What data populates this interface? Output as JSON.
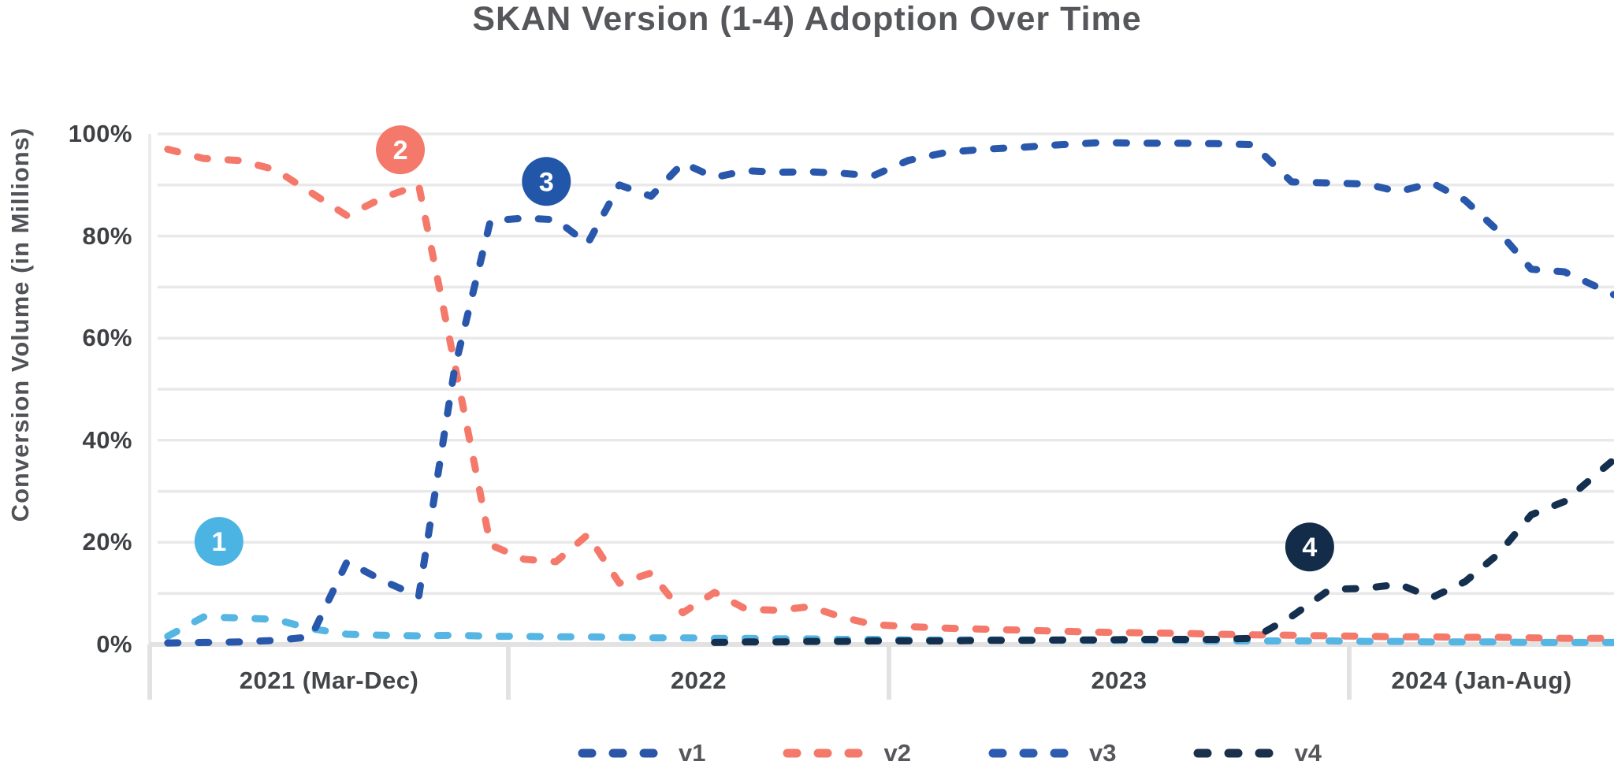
{
  "title": "SKAN Version (1-4) Adoption Over Time",
  "y_axis": {
    "title": "Conversion Volume (in Millions)",
    "ticks": [
      {
        "value": 0,
        "label": "0%"
      },
      {
        "value": 20,
        "label": "20%"
      },
      {
        "value": 40,
        "label": "40%"
      },
      {
        "value": 60,
        "label": "60%"
      },
      {
        "value": 80,
        "label": "80%"
      },
      {
        "value": 100,
        "label": "100%"
      }
    ]
  },
  "x_axis": {
    "sections": [
      {
        "label": "2021 (Mar-Dec)",
        "months": 10
      },
      {
        "label": "2022",
        "months": 12
      },
      {
        "label": "2023",
        "months": 12
      },
      {
        "label": "2024 (Jan-Aug)",
        "months": 8
      }
    ]
  },
  "legend": {
    "items": [
      {
        "label": "v1",
        "color": "#2B55A6"
      },
      {
        "label": "v2",
        "color": "#F5796B"
      },
      {
        "label": "v3",
        "color": "#2C5BB0"
      },
      {
        "label": "v4",
        "color": "#1B304A"
      }
    ]
  },
  "annotations": [
    {
      "label": "1",
      "color": "#4CB4E2",
      "month_index": 1.43,
      "value_pct": 20.2
    },
    {
      "label": "2",
      "color": "#F5796B",
      "month_index": 6.49,
      "value_pct": 96.9
    },
    {
      "label": "3",
      "color": "#2156A9",
      "month_index": 10.7,
      "value_pct": 90.7
    },
    {
      "label": "4",
      "color": "#132C49",
      "month_index": 32.47,
      "value_pct": 19.1
    }
  ],
  "chart_data": {
    "type": "line",
    "title": "SKAN Version (1-4) Adoption Over Time",
    "ylabel": "Conversion Volume (in Millions)",
    "ylim": [
      0,
      100
    ],
    "grid": "horizontal gridlines every 10%",
    "line_style": "dashed",
    "legend_position": "bottom",
    "x": [
      "Mar 2021",
      "Apr 2021",
      "May 2021",
      "Jun 2021",
      "Jul 2021",
      "Aug 2021",
      "Sep 2021",
      "Oct 2021",
      "Nov 2021",
      "Dec 2021",
      "Jan 2022",
      "Feb 2022",
      "Mar 2022",
      "Apr 2022",
      "May 2022",
      "Jun 2022",
      "Jul 2022",
      "Aug 2022",
      "Sep 2022",
      "Oct 2022",
      "Nov 2022",
      "Dec 2022",
      "Jan 2023",
      "Feb 2023",
      "Mar 2023",
      "Apr 2023",
      "May 2023",
      "Jun 2023",
      "Jul 2023",
      "Aug 2023",
      "Sep 2023",
      "Oct 2023",
      "Nov 2023",
      "Dec 2023",
      "Jan 2024",
      "Feb 2024",
      "Mar 2024",
      "Apr 2024",
      "May 2024",
      "Jun 2024",
      "Jul 2024",
      "Aug 2024"
    ],
    "series": [
      {
        "name": "v1",
        "color": "#55B5E3",
        "values": [
          1.6,
          5.4,
          5.2,
          4.9,
          3.1,
          2.0,
          1.8,
          1.7,
          1.8,
          1.6,
          1.6,
          1.5,
          1.5,
          1.4,
          1.3,
          1.3,
          1.2,
          1.2,
          1.1,
          1.1,
          1.0,
          1.0,
          0.9,
          0.9,
          0.9,
          0.9,
          0.8,
          0.8,
          0.8,
          0.8,
          0.7,
          0.7,
          0.7,
          0.7,
          0.6,
          0.6,
          0.5,
          0.5,
          0.5,
          0.4,
          0.4,
          0.4
        ]
      },
      {
        "name": "v2",
        "color": "#F5796B",
        "values": [
          97,
          95.2,
          94.8,
          93,
          88.5,
          84,
          87.5,
          90,
          55,
          19.5,
          16.7,
          16.2,
          21.5,
          12,
          14,
          6.2,
          10.2,
          6.9,
          6.7,
          7.4,
          5.4,
          3.9,
          3.5,
          3.2,
          3.0,
          2.8,
          2.6,
          2.4,
          2.3,
          2.2,
          2.0,
          1.9,
          1.8,
          1.7,
          1.6,
          1.5,
          1.5,
          1.4,
          1.4,
          1.3,
          1.2,
          1.2
        ]
      },
      {
        "name": "v3",
        "color": "#2857AC",
        "values": [
          0.3,
          0.4,
          0.5,
          0.8,
          1.5,
          16.2,
          12.5,
          9.4,
          54,
          83,
          83.5,
          83.2,
          78.5,
          90,
          87.8,
          94.3,
          91.5,
          92.8,
          92.5,
          92.6,
          92.3,
          91.8,
          94.8,
          96.4,
          97,
          97.4,
          97.9,
          98.3,
          98.2,
          98.2,
          98.1,
          97.9,
          90.6,
          90.4,
          90.2,
          88.7,
          90.4,
          87,
          81,
          73.5,
          73,
          70
        ]
      },
      {
        "name": "v4",
        "color": "#14304E",
        "values": [
          null,
          null,
          null,
          null,
          null,
          null,
          null,
          null,
          null,
          null,
          null,
          null,
          null,
          null,
          null,
          null,
          0.4,
          0.5,
          0.5,
          0.6,
          0.6,
          0.7,
          0.7,
          0.7,
          0.8,
          0.8,
          0.9,
          0.9,
          1.0,
          1.0,
          1.0,
          1.2,
          5.5,
          10.8,
          11,
          11.8,
          9.2,
          12.3,
          17.7,
          25.4,
          28,
          33.5
        ]
      }
    ]
  }
}
